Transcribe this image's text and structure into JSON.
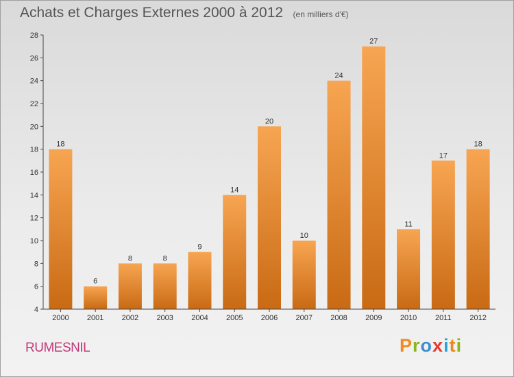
{
  "header": {
    "title": "Achats et Charges Externes 2000 à 2012",
    "subtitle": "(en milliers d'€)"
  },
  "footer": {
    "commune": "RUMESNIL",
    "logo": [
      "P",
      "r",
      "o",
      "x",
      "i",
      "t",
      "i"
    ],
    "logo_colors": [
      "#f08a24",
      "#8ab51d",
      "#3a8fd0",
      "#e63b2e",
      "#2aa4d8",
      "#e88a1e",
      "#8ab51d"
    ]
  },
  "chart_data": {
    "type": "bar",
    "title": "Achats et Charges Externes 2000 à 2012",
    "subtitle": "(en milliers d'€)",
    "categories": [
      "2000",
      "2001",
      "2002",
      "2003",
      "2004",
      "2005",
      "2006",
      "2007",
      "2008",
      "2009",
      "2010",
      "2011",
      "2012"
    ],
    "values": [
      18,
      6,
      8,
      8,
      9,
      14,
      20,
      10,
      24,
      27,
      11,
      17,
      18
    ],
    "data_labels": [
      "18",
      "6",
      "8",
      "8",
      "9",
      "14",
      "20",
      "10",
      "24",
      "27",
      "11",
      "17",
      "18"
    ],
    "ylim": [
      4,
      28
    ],
    "yticks": [
      "4",
      "6",
      "8",
      "10",
      "12",
      "14",
      "16",
      "18",
      "20",
      "22",
      "24",
      "26",
      "28"
    ],
    "xlabel": "",
    "ylabel": "",
    "grid": false,
    "legend": "none",
    "bar_color_top": "#f7a552",
    "bar_color_bottom": "#c96a14"
  }
}
